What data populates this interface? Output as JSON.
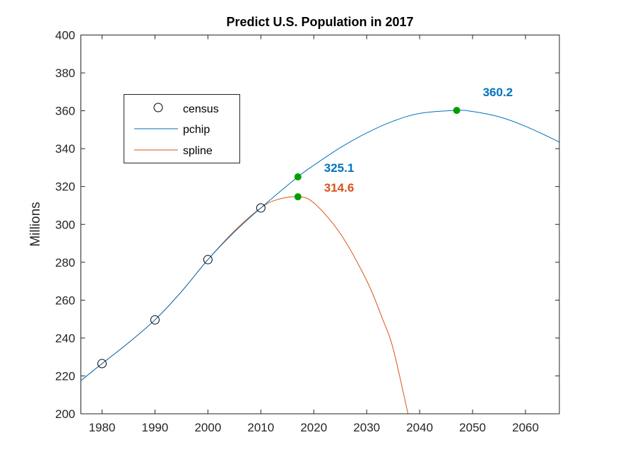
{
  "chart_data": {
    "type": "line",
    "title": "Predict U.S. Population in 2017",
    "xlabel": "",
    "ylabel": "Millions",
    "xlim": [
      1976,
      2066.4
    ],
    "ylim": [
      200,
      400
    ],
    "xticks": [
      1980,
      1990,
      2000,
      2010,
      2020,
      2030,
      2040,
      2050,
      2060
    ],
    "yticks": [
      200,
      220,
      240,
      260,
      280,
      300,
      320,
      340,
      360,
      380,
      400
    ],
    "grid": false,
    "legend_position": "top-left",
    "series": [
      {
        "name": "census",
        "style": "markers",
        "color": "#000000",
        "x": [
          1980,
          1990,
          2000,
          2010
        ],
        "y": [
          226.5,
          249.6,
          281.4,
          308.7
        ]
      },
      {
        "name": "pchip",
        "style": "line",
        "color": "#0072BD",
        "x": [
          1976,
          1980,
          1985,
          1990,
          1995,
          2000,
          2005,
          2010,
          2017,
          2020,
          2025,
          2030,
          2035,
          2040,
          2047,
          2050,
          2055,
          2060,
          2066.4
        ],
        "y": [
          217.5,
          226.5,
          237.5,
          249.6,
          264.5,
          281.4,
          296,
          308.7,
          325.1,
          331.2,
          340.5,
          348.3,
          354.5,
          358.6,
          360.2,
          359.6,
          356.8,
          351.8,
          343.5
        ]
      },
      {
        "name": "spline",
        "style": "line",
        "color": "#D95319",
        "x": [
          1976,
          1980,
          1985,
          1990,
          1995,
          2000,
          2005,
          2010,
          2013,
          2017,
          2020,
          2025,
          2030,
          2033,
          2035,
          2037.8
        ],
        "y": [
          217.5,
          226.5,
          237.5,
          249.6,
          264.5,
          281.4,
          296.5,
          308.7,
          313,
          314.6,
          311.4,
          295.2,
          270.3,
          250,
          234.3,
          200
        ]
      }
    ],
    "highlights": [
      {
        "x": 2017,
        "y": 325.1,
        "label": "325.1",
        "color": "#0072BD"
      },
      {
        "x": 2017,
        "y": 314.6,
        "label": "314.6",
        "color": "#D95319"
      },
      {
        "x": 2047,
        "y": 360.2,
        "label": "360.2",
        "color": "#0072BD"
      }
    ],
    "marker_color": "#00A000"
  }
}
